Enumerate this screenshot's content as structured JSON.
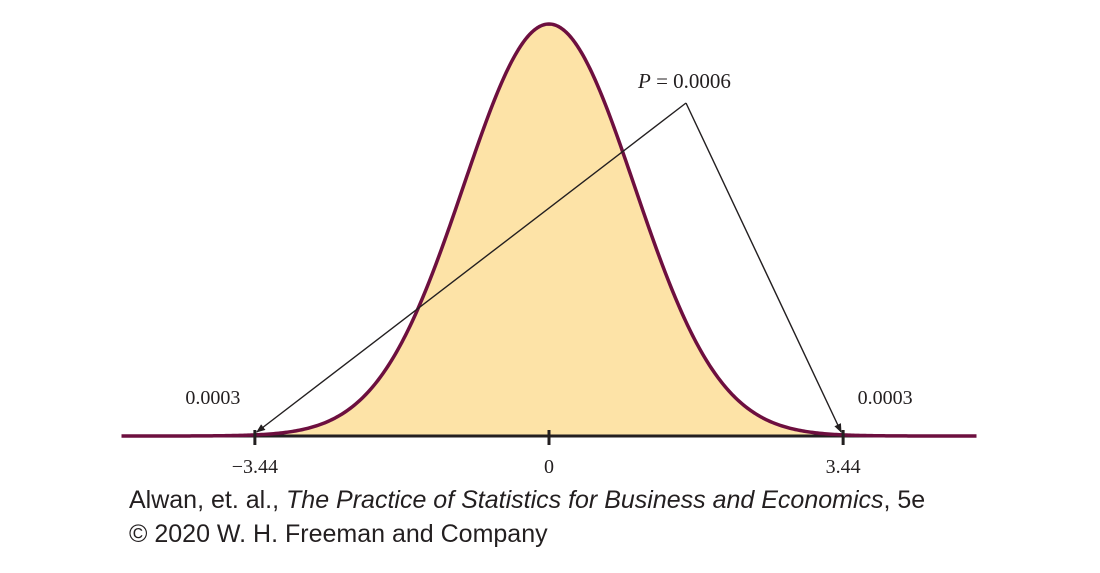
{
  "chart_data": {
    "type": "area",
    "distribution": "standard-normal",
    "title": "",
    "xlabel": "",
    "ylabel": "",
    "xlim": [
      -5.0,
      5.0
    ],
    "x_ticks": [
      {
        "value": -3.44,
        "label": "−3.44"
      },
      {
        "value": 0,
        "label": "0"
      },
      {
        "value": 3.44,
        "label": "3.44"
      }
    ],
    "tail_labels": [
      {
        "x": -3.44,
        "text": "0.0003"
      },
      {
        "x": 3.44,
        "text": "0.0003"
      }
    ],
    "p_annotation": {
      "symbol": "P",
      "equals": " = 0.0006",
      "points_to": [
        -3.44,
        3.44
      ]
    },
    "colors": {
      "fill": "#fde3a7",
      "curve": "#6d0f3f",
      "axis": "#231f20",
      "arrows": "#231f20"
    }
  },
  "credit": {
    "line1_prefix": "Alwan, et. al., ",
    "line1_title": "The Practice of Statistics for Business and Economics",
    "line1_suffix": ", 5e",
    "line2": "© 2020 W. H. Freeman and Company"
  }
}
